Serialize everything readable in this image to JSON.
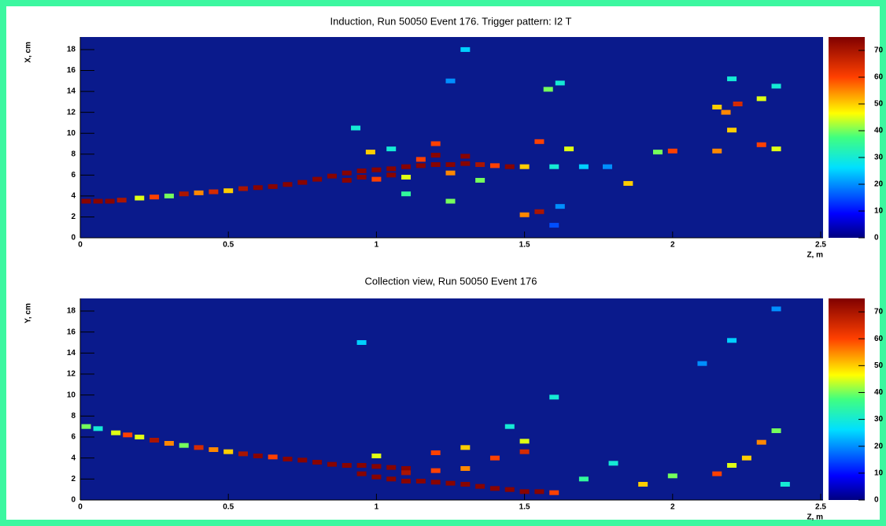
{
  "chart_data": [
    {
      "type": "heatmap",
      "title": "Induction, Run 50050 Event 176. Trigger pattern:  I2 T",
      "xlabel": "Z, m",
      "ylabel": "X, cm",
      "xlim": [
        0,
        2.5
      ],
      "ylim": [
        0,
        19.2
      ],
      "zlim": [
        0,
        75
      ],
      "xticks": [
        0,
        0.5,
        1,
        1.5,
        2,
        2.5
      ],
      "yticks": [
        0,
        2,
        4,
        6,
        8,
        10,
        12,
        14,
        16,
        18
      ],
      "zticks": [
        0,
        10,
        20,
        30,
        40,
        50,
        60,
        70
      ],
      "x": [
        0.02,
        0.06,
        0.1,
        0.14,
        0.2,
        0.25,
        0.3,
        0.35,
        0.4,
        0.45,
        0.5,
        0.55,
        0.6,
        0.65,
        0.7,
        0.75,
        0.8,
        0.85,
        0.9,
        0.95,
        1.0,
        1.05,
        1.1,
        1.15,
        1.2,
        1.25,
        1.3,
        1.35,
        1.4,
        1.45,
        1.5,
        1.6,
        1.7,
        1.78,
        0.9,
        0.95,
        1.0,
        1.05,
        1.1,
        1.15,
        1.2,
        1.25,
        1.3,
        1.35,
        0.98,
        1.05,
        1.2,
        0.93,
        1.1,
        1.25,
        1.5,
        1.55,
        1.58,
        1.62,
        1.55,
        1.65,
        1.62,
        1.6,
        1.85,
        2.0,
        1.95,
        2.15,
        2.15,
        2.22,
        2.3,
        2.35,
        2.2,
        2.3,
        2.35,
        2.2,
        1.25,
        1.3,
        2.18
      ],
      "y": [
        3.5,
        3.5,
        3.5,
        3.6,
        3.8,
        3.9,
        4.0,
        4.2,
        4.3,
        4.4,
        4.5,
        4.7,
        4.8,
        4.9,
        5.1,
        5.3,
        5.6,
        5.9,
        6.2,
        6.4,
        6.5,
        6.6,
        6.8,
        6.9,
        7.0,
        7.0,
        7.1,
        7.0,
        6.9,
        6.8,
        6.8,
        6.8,
        6.8,
        6.8,
        5.5,
        5.8,
        5.6,
        6.0,
        5.8,
        7.5,
        7.9,
        6.2,
        7.8,
        5.5,
        8.2,
        8.5,
        9.0,
        10.5,
        4.2,
        3.5,
        2.2,
        2.5,
        14.2,
        14.8,
        9.2,
        8.5,
        3.0,
        1.2,
        5.2,
        8.3,
        8.2,
        8.3,
        12.5,
        12.8,
        13.3,
        14.5,
        15.2,
        8.9,
        8.5,
        10.3,
        15.0,
        18.0,
        12.0
      ],
      "values": [
        74,
        74,
        74,
        70,
        45,
        60,
        40,
        70,
        55,
        65,
        50,
        70,
        74,
        74,
        74,
        74,
        74,
        74,
        74,
        74,
        74,
        74,
        74,
        74,
        74,
        74,
        74,
        70,
        60,
        74,
        50,
        30,
        25,
        20,
        74,
        74,
        60,
        74,
        45,
        60,
        74,
        55,
        74,
        40,
        50,
        30,
        60,
        30,
        35,
        40,
        55,
        70,
        40,
        30,
        60,
        45,
        20,
        15,
        50,
        60,
        40,
        55,
        50,
        65,
        45,
        30,
        30,
        60,
        45,
        50,
        20,
        25,
        55
      ]
    },
    {
      "type": "heatmap",
      "title": "Collection view, Run 50050 Event 176",
      "xlabel": "Z, m",
      "ylabel": "Y, cm",
      "xlim": [
        0,
        2.5
      ],
      "ylim": [
        0,
        19.2
      ],
      "zlim": [
        0,
        75
      ],
      "xticks": [
        0,
        0.5,
        1,
        1.5,
        2,
        2.5
      ],
      "yticks": [
        0,
        2,
        4,
        6,
        8,
        10,
        12,
        14,
        16,
        18
      ],
      "zticks": [
        0,
        10,
        20,
        30,
        40,
        50,
        60,
        70
      ],
      "x": [
        0.02,
        0.06,
        0.12,
        0.16,
        0.2,
        0.25,
        0.3,
        0.35,
        0.4,
        0.45,
        0.5,
        0.55,
        0.6,
        0.65,
        0.7,
        0.75,
        0.8,
        0.85,
        0.9,
        0.95,
        1.0,
        1.05,
        1.1,
        0.95,
        1.0,
        1.05,
        1.1,
        1.15,
        1.2,
        1.25,
        1.3,
        1.35,
        1.4,
        1.45,
        1.5,
        1.55,
        1.6,
        1.1,
        1.2,
        1.3,
        1.0,
        1.2,
        1.3,
        1.4,
        1.5,
        1.5,
        1.45,
        0.95,
        1.6,
        1.7,
        1.9,
        2.0,
        2.15,
        2.2,
        2.3,
        2.35,
        2.25,
        2.38,
        2.2,
        2.35,
        1.8,
        2.1
      ],
      "y": [
        7.0,
        6.8,
        6.4,
        6.2,
        6.0,
        5.7,
        5.4,
        5.2,
        5.0,
        4.8,
        4.6,
        4.4,
        4.2,
        4.1,
        3.9,
        3.8,
        3.6,
        3.4,
        3.3,
        3.3,
        3.2,
        3.1,
        3.0,
        2.5,
        2.2,
        2.0,
        1.8,
        1.8,
        1.7,
        1.6,
        1.5,
        1.3,
        1.1,
        1.0,
        0.8,
        0.8,
        0.7,
        2.6,
        2.8,
        3.0,
        4.2,
        4.5,
        5.0,
        4.0,
        4.6,
        5.6,
        7.0,
        15.0,
        9.8,
        2.0,
        1.5,
        2.3,
        2.5,
        3.3,
        5.5,
        6.6,
        4.0,
        1.5,
        15.2,
        18.2,
        3.5,
        13.0
      ],
      "values": [
        40,
        30,
        45,
        60,
        45,
        70,
        55,
        40,
        65,
        55,
        50,
        70,
        74,
        60,
        74,
        74,
        74,
        74,
        74,
        74,
        74,
        74,
        74,
        74,
        74,
        74,
        74,
        74,
        74,
        74,
        74,
        74,
        74,
        74,
        74,
        74,
        60,
        70,
        60,
        55,
        45,
        60,
        50,
        60,
        65,
        45,
        30,
        25,
        30,
        35,
        50,
        40,
        60,
        45,
        55,
        40,
        50,
        30,
        25,
        20,
        30,
        20
      ]
    }
  ]
}
